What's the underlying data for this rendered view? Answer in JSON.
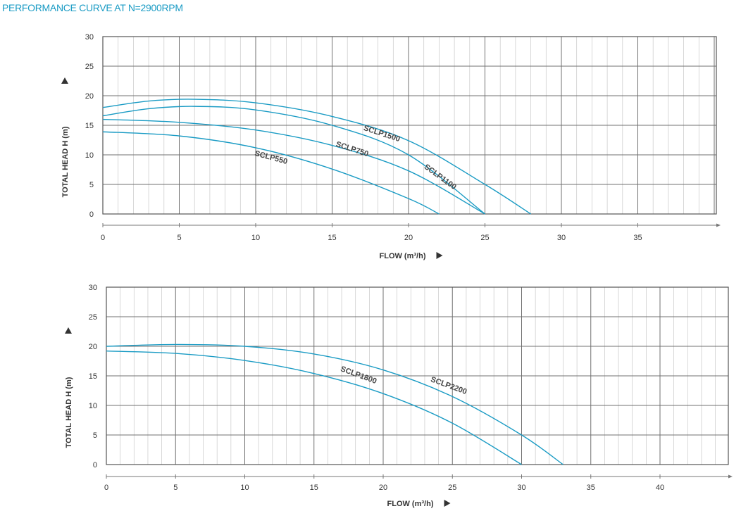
{
  "page_title": "PERFORMANCE CURVE AT N=2900RPM",
  "colors": {
    "curve": "#1a9bc4",
    "title": "#1a9bc4",
    "grid_major": "#707070",
    "grid_minor": "#c8c8c8",
    "text": "#333333"
  },
  "chart_data": [
    {
      "type": "line",
      "title": "",
      "xlabel": "FLOW (m³/h)",
      "ylabel": "TOTAL HEAD H (m)",
      "xlim": [
        0,
        40
      ],
      "ylim": [
        0,
        30
      ],
      "x_ticks": [
        "0",
        "5",
        "10",
        "15",
        "20",
        "25",
        "30",
        "35"
      ],
      "y_ticks": [
        "0",
        "5",
        "10",
        "15",
        "20",
        "25",
        "30"
      ],
      "grid": true,
      "series": [
        {
          "name": "SCLP550",
          "x": [
            0,
            5,
            10,
            15,
            20,
            22
          ],
          "y": [
            13.9,
            13.2,
            11.2,
            7.6,
            2.6,
            0
          ]
        },
        {
          "name": "SCLP750",
          "x": [
            0,
            5,
            10,
            15,
            20,
            25
          ],
          "y": [
            16,
            15.5,
            14.2,
            11.6,
            7.3,
            0
          ]
        },
        {
          "name": "SCLP1100",
          "x": [
            0,
            3,
            6,
            10,
            15,
            20,
            25
          ],
          "y": [
            16.6,
            17.8,
            18.2,
            17.6,
            15,
            10,
            0
          ]
        },
        {
          "name": "SCLP1500",
          "x": [
            0,
            3,
            6,
            10,
            15,
            20,
            25,
            28
          ],
          "y": [
            18,
            19.1,
            19.4,
            18.8,
            16.5,
            12.4,
            5,
            0
          ]
        }
      ]
    },
    {
      "type": "line",
      "title": "",
      "xlabel": "FLOW (m³/h)",
      "ylabel": "TOTAL HEAD H (m)",
      "xlim": [
        0,
        45
      ],
      "ylim": [
        0,
        30
      ],
      "x_ticks": [
        "0",
        "5",
        "10",
        "15",
        "20",
        "25",
        "30",
        "35",
        "40"
      ],
      "y_ticks": [
        "0",
        "5",
        "10",
        "15",
        "20",
        "25",
        "30"
      ],
      "grid": true,
      "series": [
        {
          "name": "SCLP1800",
          "x": [
            0,
            5,
            10,
            15,
            20,
            25,
            30
          ],
          "y": [
            19.2,
            18.8,
            17.6,
            15.4,
            12,
            7,
            0
          ]
        },
        {
          "name": "SCLP2200",
          "x": [
            0,
            5,
            10,
            15,
            20,
            25,
            30,
            33
          ],
          "y": [
            20,
            20.3,
            20,
            18.7,
            16,
            11.5,
            5,
            0
          ]
        }
      ]
    }
  ]
}
